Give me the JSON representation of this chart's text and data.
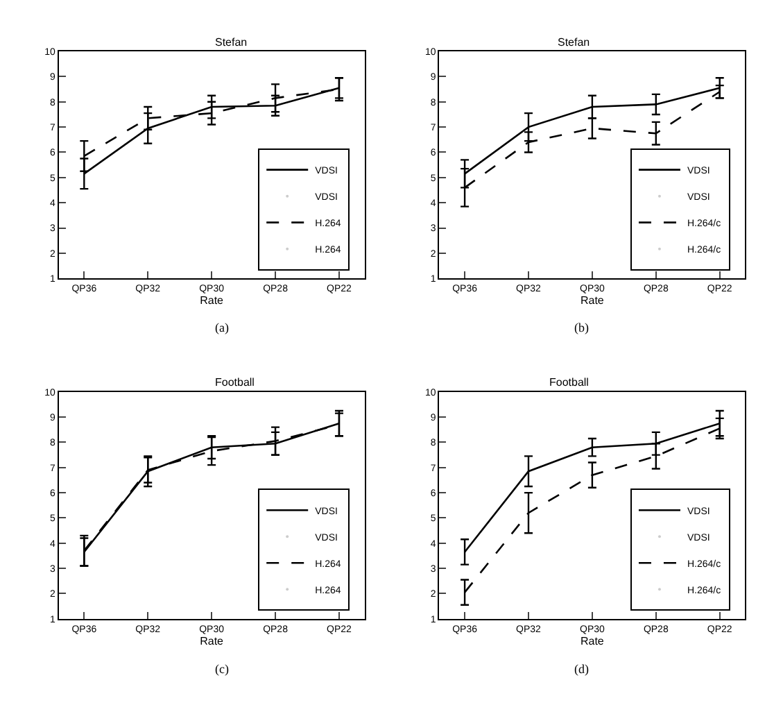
{
  "chart_data": [
    {
      "type": "line",
      "title": "Stefan",
      "xlabel": "Rate",
      "categories": [
        "QP36",
        "QP32",
        "QP30",
        "QP28",
        "QP22"
      ],
      "ylim": [
        1,
        10
      ],
      "yticks": [
        1,
        2,
        3,
        4,
        5,
        6,
        7,
        8,
        9,
        10
      ],
      "legend": "bottom right",
      "marker": "none",
      "annotations": [
        "(a)"
      ],
      "series": [
        {
          "name": "VDSI",
          "color": "#000000",
          "line_style": "solid",
          "values": [
            5.15,
            6.95,
            7.8,
            7.85,
            8.55
          ],
          "errors": [
            0.6,
            0.6,
            0.45,
            0.4,
            0.4
          ]
        },
        {
          "name": "H.264",
          "color": "#000000",
          "line_style": "dashed",
          "values": [
            5.85,
            7.35,
            7.55,
            8.15,
            8.5
          ],
          "errors": [
            0.6,
            0.45,
            0.45,
            0.55,
            0.45
          ]
        }
      ]
    },
    {
      "type": "line",
      "title": "Stefan",
      "xlabel": "Rate",
      "categories": [
        "QP36",
        "QP32",
        "QP30",
        "QP28",
        "QP22"
      ],
      "ylim": [
        1,
        10
      ],
      "yticks": [
        1,
        2,
        3,
        4,
        5,
        6,
        7,
        8,
        9,
        10
      ],
      "legend": "bottom right",
      "marker": "none",
      "annotations": [
        "(b)"
      ],
      "series": [
        {
          "name": "VDSI",
          "color": "#000000",
          "line_style": "solid",
          "values": [
            5.15,
            7.0,
            7.8,
            7.9,
            8.55
          ],
          "errors": [
            0.55,
            0.55,
            0.45,
            0.4,
            0.4
          ]
        },
        {
          "name": "H.264/c",
          "color": "#000000",
          "line_style": "dashed",
          "values": [
            4.6,
            6.4,
            6.95,
            6.75,
            8.4
          ],
          "errors": [
            0.75,
            0.4,
            0.4,
            0.45,
            0.25
          ]
        }
      ]
    },
    {
      "type": "line",
      "title": "Football",
      "xlabel": "Rate",
      "categories": [
        "QP36",
        "QP32",
        "QP30",
        "QP28",
        "QP22"
      ],
      "ylim": [
        1,
        10
      ],
      "yticks": [
        1,
        2,
        3,
        4,
        5,
        6,
        7,
        8,
        9,
        10
      ],
      "legend": "bottom right",
      "marker": "none",
      "annotations": [
        "(c)"
      ],
      "series": [
        {
          "name": "VDSI",
          "color": "#000000",
          "line_style": "solid",
          "values": [
            3.65,
            6.85,
            7.8,
            7.95,
            8.75
          ],
          "errors": [
            0.55,
            0.6,
            0.45,
            0.45,
            0.5
          ]
        },
        {
          "name": "H.264",
          "color": "#000000",
          "line_style": "dashed",
          "values": [
            3.7,
            6.9,
            7.65,
            8.05,
            8.7
          ],
          "errors": [
            0.6,
            0.5,
            0.55,
            0.55,
            0.45
          ]
        }
      ]
    },
    {
      "type": "line",
      "title": "Football",
      "xlabel": "Rate",
      "categories": [
        "QP36",
        "QP32",
        "QP30",
        "QP28",
        "QP22"
      ],
      "ylim": [
        1,
        10
      ],
      "yticks": [
        1,
        2,
        3,
        4,
        5,
        6,
        7,
        8,
        9,
        10
      ],
      "legend": "bottom right",
      "marker": "none",
      "annotations": [
        "(d)"
      ],
      "series": [
        {
          "name": "VDSI",
          "color": "#000000",
          "line_style": "solid",
          "values": [
            3.65,
            6.85,
            7.8,
            7.95,
            8.75
          ],
          "errors": [
            0.5,
            0.6,
            0.35,
            0.45,
            0.5
          ]
        },
        {
          "name": "H.264/c",
          "color": "#000000",
          "line_style": "dashed",
          "values": [
            2.05,
            5.2,
            6.7,
            7.45,
            8.55
          ],
          "errors": [
            0.5,
            0.8,
            0.5,
            0.5,
            0.4
          ]
        }
      ]
    }
  ]
}
